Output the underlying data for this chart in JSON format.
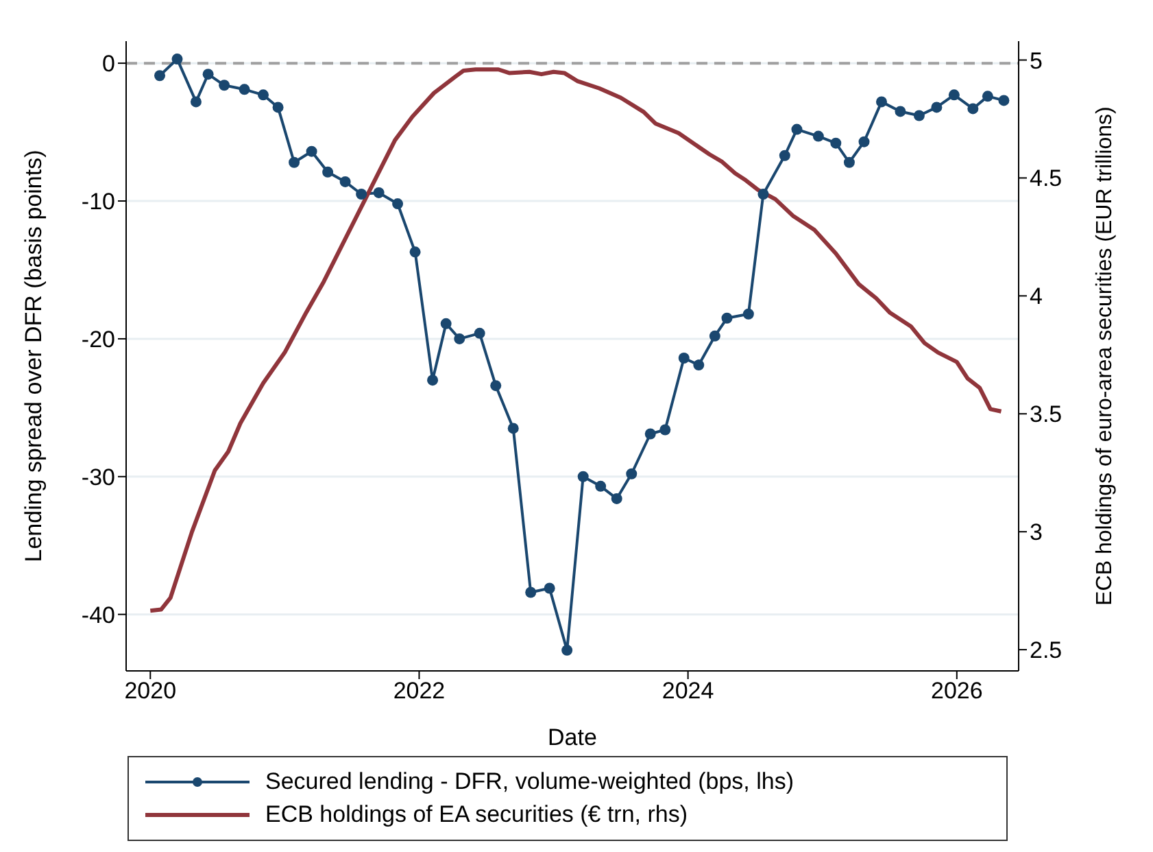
{
  "chart_data": {
    "type": "line",
    "xlabel": "Date",
    "ylabel": "Lending spread over DFR (basis points)",
    "y2label": "ECB holdings of euro-area securities (EUR trillions)",
    "xlim": [
      2019.82,
      2026.46
    ],
    "xticks": [
      2020,
      2022,
      2024,
      2026
    ],
    "ylim": [
      -44.1,
      1.6
    ],
    "yticks": [
      -40,
      -30,
      -20,
      -10,
      0
    ],
    "y2lim": [
      2.41,
      5.08
    ],
    "y2ticks": [
      2.5,
      3,
      3.5,
      4,
      4.5,
      5
    ],
    "grid": "y",
    "legend": "bottom",
    "ref_lines": [
      {
        "axis": "y",
        "value": 0,
        "color": "#a0a0a0",
        "line_style": "dashed"
      }
    ],
    "series": [
      {
        "name": "Secured lending - DFR, volume-weighted (bps, lhs)",
        "color": "#1a476f",
        "marker": "circle",
        "line_style": "solid",
        "x": [
          2020.07,
          2020.2,
          2020.34,
          2020.43,
          2020.55,
          2020.7,
          2020.84,
          2020.95,
          2021.07,
          2021.2,
          2021.32,
          2021.45,
          2021.57,
          2021.7,
          2021.84,
          2021.97,
          2022.1,
          2022.2,
          2022.3,
          2022.45,
          2022.57,
          2022.7,
          2022.83,
          2022.97,
          2023.1,
          2023.22,
          2023.35,
          2023.47,
          2023.58,
          2023.72,
          2023.83,
          2023.97,
          2024.08,
          2024.2,
          2024.29,
          2024.45,
          2024.56,
          2024.72,
          2024.81,
          2024.97,
          2025.1,
          2025.2,
          2025.31,
          2025.44,
          2025.58,
          2025.72,
          2025.85,
          2025.98,
          2026.12,
          2026.23,
          2026.35
        ],
        "values": [
          -0.9,
          0.3,
          -2.8,
          -0.8,
          -1.6,
          -1.9,
          -2.3,
          -3.2,
          -7.2,
          -6.4,
          -7.9,
          -8.6,
          -9.5,
          -9.4,
          -10.2,
          -13.7,
          -23.0,
          -18.9,
          -20.0,
          -19.6,
          -23.4,
          -26.5,
          -38.4,
          -38.1,
          -42.6,
          -30.0,
          -30.7,
          -31.6,
          -29.8,
          -26.9,
          -26.6,
          -21.4,
          -21.9,
          -19.8,
          -18.5,
          -18.2,
          -9.5,
          -6.7,
          -4.8,
          -5.3,
          -5.8,
          -7.2,
          -5.7,
          -2.8,
          -3.5,
          -3.8,
          -3.2,
          -2.3,
          -3.3,
          -2.4,
          -2.7
        ]
      },
      {
        "name": "ECB holdings of EA securities (€ trn, rhs)",
        "color": "#90353b",
        "marker": "none",
        "line_style": "solid",
        "axis": "y2",
        "x": [
          2020.0,
          2020.08,
          2020.15,
          2020.31,
          2020.48,
          2020.58,
          2020.67,
          2020.84,
          2021.0,
          2021.16,
          2021.29,
          2021.59,
          2021.82,
          2021.95,
          2022.11,
          2022.27,
          2022.33,
          2022.42,
          2022.59,
          2022.67,
          2022.82,
          2022.91,
          2023.0,
          2023.08,
          2023.18,
          2023.34,
          2023.5,
          2023.67,
          2023.76,
          2023.93,
          2024.16,
          2024.25,
          2024.35,
          2024.43,
          2024.52,
          2024.65,
          2024.78,
          2024.94,
          2025.1,
          2025.27,
          2025.4,
          2025.5,
          2025.66,
          2025.76,
          2025.86,
          2026.0,
          2026.08,
          2026.17,
          2026.25,
          2026.33
        ],
        "values": [
          2.665,
          2.67,
          2.72,
          3.0,
          3.26,
          3.34,
          3.46,
          3.63,
          3.76,
          3.93,
          4.06,
          4.4,
          4.66,
          4.76,
          4.86,
          4.93,
          4.955,
          4.96,
          4.96,
          4.945,
          4.95,
          4.94,
          4.95,
          4.945,
          4.91,
          4.88,
          4.84,
          4.78,
          4.73,
          4.69,
          4.6,
          4.57,
          4.52,
          4.49,
          4.45,
          4.41,
          4.34,
          4.28,
          4.18,
          4.05,
          3.99,
          3.93,
          3.87,
          3.8,
          3.76,
          3.72,
          3.65,
          3.61,
          3.52,
          3.51
        ]
      }
    ]
  }
}
